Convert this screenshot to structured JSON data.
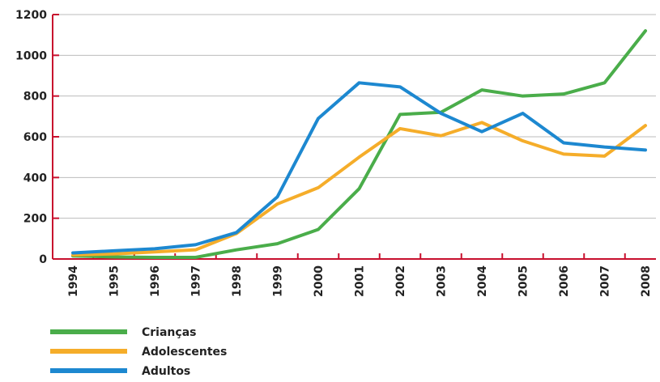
{
  "chart_data": {
    "type": "line",
    "title": "",
    "xlabel": "",
    "ylabel": "",
    "categories": [
      "1994",
      "1995",
      "1996",
      "1997",
      "1998",
      "1999",
      "2000",
      "2001",
      "2002",
      "2003",
      "2004",
      "2005",
      "2006",
      "2007",
      "2008"
    ],
    "ylim": [
      0,
      1200
    ],
    "yticks": [
      "0",
      "200",
      "400",
      "600",
      "800",
      "1000",
      "1200"
    ],
    "grid": "horizontal",
    "legend_position": "bottom-left",
    "series": [
      {
        "name": "Crianças",
        "color": "#4aad4a",
        "values": [
          15,
          10,
          8,
          8,
          45,
          75,
          145,
          345,
          710,
          720,
          830,
          800,
          810,
          865,
          1120
        ]
      },
      {
        "name": "Adolescentes",
        "color": "#f5ad2a",
        "values": [
          20,
          25,
          35,
          45,
          125,
          270,
          350,
          500,
          640,
          605,
          670,
          580,
          515,
          505,
          655
        ]
      },
      {
        "name": "Adultos",
        "color": "#1d88d0",
        "values": [
          30,
          40,
          50,
          70,
          130,
          305,
          690,
          865,
          845,
          715,
          625,
          715,
          570,
          550,
          535
        ]
      }
    ]
  }
}
